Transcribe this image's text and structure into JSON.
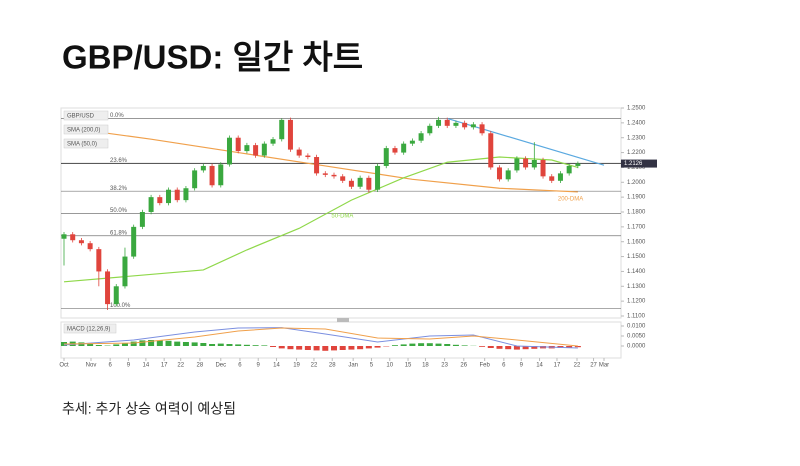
{
  "chart_data": {
    "type": "candlestick",
    "title": "GBP/USD: 일간 차트",
    "caption": "추세: 추가 상승 여력이 예상됨",
    "legend": [
      "GBP/USD",
      "SMA (200,0)",
      "SMA (50,0)"
    ],
    "up_color": "#3aa83f",
    "down_color": "#e0443c",
    "open": [
      1.162,
      1.165,
      1.161,
      1.159,
      1.155,
      1.14,
      1.118,
      1.13,
      1.15,
      1.17,
      1.18,
      1.19,
      1.186,
      1.195,
      1.188,
      1.196,
      1.208,
      1.211,
      1.198,
      1.212,
      1.23,
      1.221,
      1.225,
      1.218,
      1.226,
      1.229,
      1.242,
      1.222,
      1.218,
      1.217,
      1.206,
      1.205,
      1.204,
      1.201,
      1.197,
      1.203,
      1.195,
      1.211,
      1.223,
      1.22,
      1.226,
      1.228,
      1.233,
      1.238,
      1.242,
      1.238,
      1.24,
      1.237,
      1.239,
      1.233,
      1.21,
      1.202,
      1.208,
      1.216,
      1.21,
      1.215,
      1.204,
      1.201,
      1.206,
      1.211
    ],
    "close": [
      1.165,
      1.161,
      1.159,
      1.155,
      1.14,
      1.118,
      1.13,
      1.15,
      1.17,
      1.18,
      1.19,
      1.186,
      1.195,
      1.188,
      1.196,
      1.208,
      1.211,
      1.198,
      1.212,
      1.23,
      1.221,
      1.225,
      1.218,
      1.226,
      1.229,
      1.242,
      1.222,
      1.218,
      1.217,
      1.206,
      1.205,
      1.204,
      1.201,
      1.197,
      1.203,
      1.195,
      1.211,
      1.223,
      1.22,
      1.226,
      1.228,
      1.233,
      1.238,
      1.242,
      1.238,
      1.24,
      1.237,
      1.239,
      1.233,
      1.21,
      1.202,
      1.208,
      1.216,
      1.21,
      1.215,
      1.204,
      1.201,
      1.206,
      1.211,
      1.2126
    ],
    "high": [
      1.1665,
      1.1665,
      1.1625,
      1.1605,
      1.1565,
      1.1415,
      1.1315,
      1.156,
      1.1715,
      1.1815,
      1.1915,
      1.1915,
      1.1965,
      1.1965,
      1.1975,
      1.2095,
      1.2125,
      1.2125,
      1.2135,
      1.2315,
      1.2315,
      1.2265,
      1.2265,
      1.2275,
      1.2305,
      1.243,
      1.2435,
      1.2235,
      1.2195,
      1.2185,
      1.2075,
      1.2065,
      1.2055,
      1.2025,
      1.2045,
      1.2045,
      1.2125,
      1.2245,
      1.2245,
      1.2275,
      1.2295,
      1.2345,
      1.2395,
      1.244,
      1.2435,
      1.2415,
      1.2415,
      1.2405,
      1.2405,
      1.2345,
      1.2115,
      1.2095,
      1.2175,
      1.2175,
      1.227,
      1.2165,
      1.2055,
      1.2075,
      1.2125,
      1.214
    ],
    "low": [
      1.144,
      1.1595,
      1.1575,
      1.1535,
      1.13,
      1.114,
      1.1165,
      1.1285,
      1.1485,
      1.1685,
      1.1785,
      1.1845,
      1.1845,
      1.1865,
      1.1865,
      1.1945,
      1.2065,
      1.1965,
      1.1965,
      1.2105,
      1.2195,
      1.2195,
      1.2165,
      1.2165,
      1.2245,
      1.2275,
      1.2205,
      1.2165,
      1.2155,
      1.2045,
      1.2035,
      1.2025,
      1.1995,
      1.1955,
      1.1955,
      1.193,
      1.1935,
      1.2095,
      1.2185,
      1.2185,
      1.2245,
      1.2265,
      1.2315,
      1.2365,
      1.2365,
      1.2365,
      1.2355,
      1.2355,
      1.2315,
      1.2085,
      1.2005,
      1.2005,
      1.2065,
      1.2085,
      1.2085,
      1.2025,
      1.1995,
      1.1995,
      1.2045,
      1.2095
    ],
    "series": [
      {
        "name": "200-DMA",
        "color": "#f0a04b",
        "x": [
          0,
          10,
          20,
          30,
          40,
          50,
          59
        ],
        "values": [
          1.237,
          1.229,
          1.22,
          1.211,
          1.202,
          1.196,
          1.1935
        ]
      },
      {
        "name": "50-DMA",
        "color": "#8fd84a",
        "x": [
          0,
          16,
          21,
          27,
          33,
          39,
          44,
          50,
          56,
          59
        ],
        "values": [
          1.133,
          1.141,
          1.1545,
          1.169,
          1.188,
          1.203,
          1.2135,
          1.217,
          1.215,
          1.21
        ]
      }
    ],
    "trendline": {
      "color": "#5aa9e0",
      "x": [
        44,
        62
      ],
      "values": [
        1.243,
        1.2115
      ]
    },
    "levels": [
      {
        "label": "0.0%",
        "value": 1.243
      },
      {
        "label": "23.6%",
        "value": 1.2128
      },
      {
        "label": "38.2%",
        "value": 1.194
      },
      {
        "label": "50.0%",
        "value": 1.179
      },
      {
        "label": "61.8%",
        "value": 1.164
      },
      {
        "label": "100.0%",
        "value": 1.115
      }
    ],
    "last_price": {
      "value": 1.2126,
      "label": "1.2126"
    },
    "xlim": [
      0,
      62
    ],
    "xticks": [
      {
        "value": 0,
        "label": "Oct"
      },
      {
        "value": 3.1,
        "label": "Nov"
      },
      {
        "value": 5.3,
        "label": "6"
      },
      {
        "value": 7.4,
        "label": "9"
      },
      {
        "value": 9.4,
        "label": "14"
      },
      {
        "value": 11.5,
        "label": "17"
      },
      {
        "value": 13.4,
        "label": "22"
      },
      {
        "value": 15.6,
        "label": "28"
      },
      {
        "value": 18,
        "label": "Dec"
      },
      {
        "value": 20.2,
        "label": "6"
      },
      {
        "value": 22.3,
        "label": "9"
      },
      {
        "value": 24.4,
        "label": "14"
      },
      {
        "value": 26.7,
        "label": "19"
      },
      {
        "value": 28.7,
        "label": "22"
      },
      {
        "value": 30.8,
        "label": "28"
      },
      {
        "value": 33.2,
        "label": "Jan"
      },
      {
        "value": 35.3,
        "label": "5"
      },
      {
        "value": 37.4,
        "label": "10"
      },
      {
        "value": 39.5,
        "label": "15"
      },
      {
        "value": 41.5,
        "label": "18"
      },
      {
        "value": 43.7,
        "label": "23"
      },
      {
        "value": 45.9,
        "label": "26"
      },
      {
        "value": 48.3,
        "label": "Feb"
      },
      {
        "value": 50.5,
        "label": "6"
      },
      {
        "value": 52.5,
        "label": "9"
      },
      {
        "value": 54.6,
        "label": "14"
      },
      {
        "value": 56.6,
        "label": "17"
      },
      {
        "value": 58.9,
        "label": "22"
      },
      {
        "value": 60.8,
        "label": "27"
      },
      {
        "value": 62,
        "label": "Mar"
      }
    ],
    "ylim": [
      1.11,
      1.25
    ],
    "yticks": [
      {
        "value": 1.25,
        "label": "1.2500"
      },
      {
        "value": 1.24,
        "label": "1.2400"
      },
      {
        "value": 1.23,
        "label": "1.2300"
      },
      {
        "value": 1.22,
        "label": "1.2200"
      },
      {
        "value": 1.21,
        "label": "1.2100"
      },
      {
        "value": 1.2,
        "label": "1.2000"
      },
      {
        "value": 1.19,
        "label": "1.1900"
      },
      {
        "value": 1.18,
        "label": "1.1800"
      },
      {
        "value": 1.17,
        "label": "1.1700"
      },
      {
        "value": 1.16,
        "label": "1.1600"
      },
      {
        "value": 1.15,
        "label": "1.1500"
      },
      {
        "value": 1.14,
        "label": "1.1400"
      },
      {
        "value": 1.13,
        "label": "1.1300"
      },
      {
        "value": 1.12,
        "label": "1.1200"
      },
      {
        "value": 1.11,
        "label": "1.1100"
      }
    ],
    "macd": {
      "title": "MACD (12,26,9)",
      "ylim": [
        -0.006,
        0.012
      ],
      "yticks": [
        {
          "value": 0.01,
          "label": "0.0100"
        },
        {
          "value": 0.005,
          "label": "0.0050"
        },
        {
          "value": 0,
          "label": "0.0000"
        }
      ],
      "hist": [
        0.002,
        0.0022,
        0.0018,
        0.001,
        0.0005,
        0.0002,
        0.0008,
        0.0015,
        0.0022,
        0.0028,
        0.003,
        0.0028,
        0.0026,
        0.0022,
        0.002,
        0.0018,
        0.0015,
        0.001,
        0.0012,
        0.001,
        0.0008,
        0.0006,
        0.0004,
        0.0003,
        -0.0005,
        -0.0012,
        -0.0016,
        -0.0018,
        -0.002,
        -0.0022,
        -0.0024,
        -0.0022,
        -0.002,
        -0.0018,
        -0.0016,
        -0.0012,
        -0.0008,
        -0.0002,
        0.0004,
        0.0008,
        0.0012,
        0.0014,
        0.0014,
        0.0012,
        0.001,
        0.0006,
        0.0003,
        0.0001,
        -0.0004,
        -0.001,
        -0.0014,
        -0.0016,
        -0.0018,
        -0.0016,
        -0.0014,
        -0.0012,
        -0.0012,
        -0.001,
        -0.0008,
        -0.0006
      ],
      "lines": [
        {
          "color": "#7b8fe0",
          "x": [
            0,
            8,
            15,
            20,
            25,
            30,
            36,
            42,
            47,
            52,
            59
          ],
          "values": [
            0.0005,
            0.003,
            0.007,
            0.009,
            0.0092,
            0.006,
            0.002,
            0.005,
            0.0055,
            0.0,
            -0.001
          ]
        },
        {
          "color": "#f0a04b",
          "x": [
            0,
            8,
            15,
            20,
            25,
            30,
            36,
            42,
            47,
            52,
            59
          ],
          "values": [
            0.001,
            0.0015,
            0.0045,
            0.0075,
            0.009,
            0.0085,
            0.004,
            0.0035,
            0.005,
            0.003,
            0.0
          ]
        }
      ]
    }
  }
}
